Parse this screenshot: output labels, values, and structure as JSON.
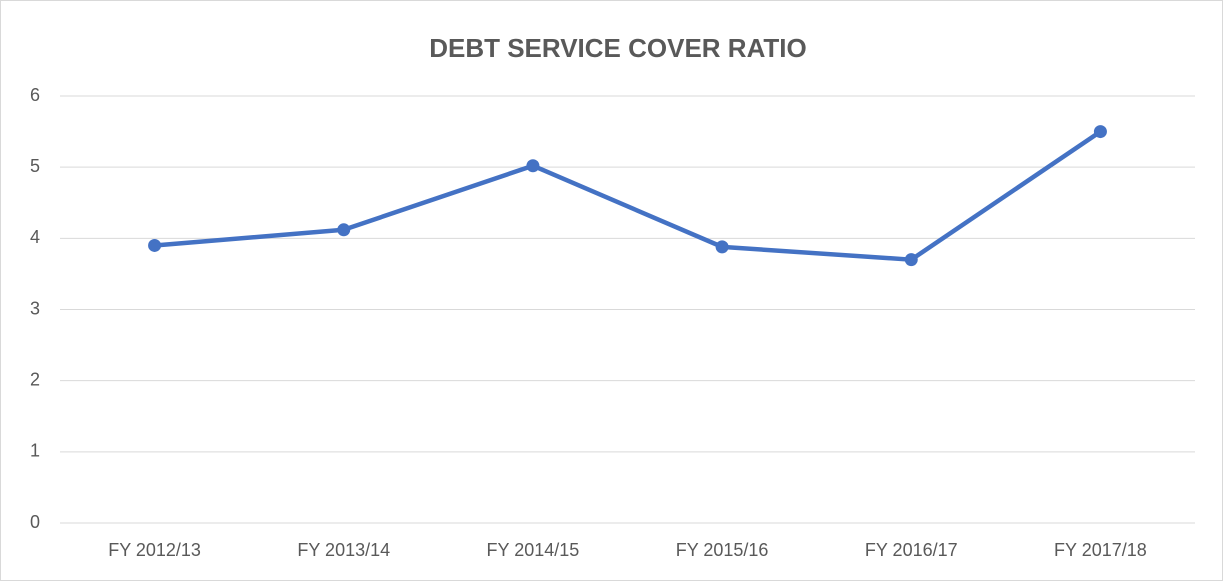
{
  "chart_data": {
    "type": "line",
    "title": "DEBT SERVICE COVER RATIO",
    "categories": [
      "FY 2012/13",
      "FY 2013/14",
      "FY 2014/15",
      "FY 2015/16",
      "FY 2016/17",
      "FY 2017/18"
    ],
    "series": [
      {
        "color": "#4472c4",
        "values": [
          3.9,
          4.12,
          5.02,
          3.88,
          3.7,
          5.5
        ]
      }
    ],
    "ylim": [
      0,
      6
    ],
    "yticks": [
      0,
      1,
      2,
      3,
      4,
      5,
      6
    ],
    "grid": true
  }
}
